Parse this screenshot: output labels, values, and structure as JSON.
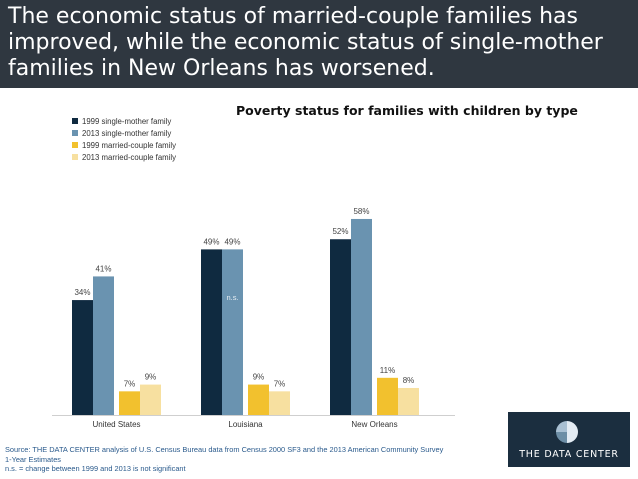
{
  "header": {
    "lines": [
      "The economic status of married-couple families has",
      "improved, while the economic status of single-mother",
      "families in New Orleans has worsened."
    ]
  },
  "chart_data": {
    "type": "bar",
    "title": "Poverty status for families with children by type",
    "categories": [
      "United States",
      "Louisiana",
      "New Orleans"
    ],
    "series": [
      {
        "name": "1999 single-mother family",
        "color": "#0f2a40",
        "values": [
          34,
          49,
          52
        ],
        "labels": [
          "34%",
          "49%",
          "52%"
        ]
      },
      {
        "name": "2013 single-mother family",
        "color": "#6a93b0",
        "values": [
          41,
          49,
          58
        ],
        "labels": [
          "41%",
          "49%",
          "58%"
        ]
      },
      {
        "name": "1999 married-couple family",
        "color": "#f2c12e",
        "values": [
          7,
          9,
          11
        ],
        "labels": [
          "7%",
          "9%",
          "11%"
        ]
      },
      {
        "name": "2013 married-couple family",
        "color": "#f7e0a0",
        "values": [
          9,
          7,
          8
        ],
        "labels": [
          "9%",
          "7%",
          "8%"
        ]
      }
    ],
    "annotations": [
      {
        "category": "Louisiana",
        "series": "2013 single-mother family",
        "text": "n.s."
      }
    ],
    "ylim": [
      0,
      62
    ],
    "xlabel": "",
    "ylabel": "",
    "legend": "top-left",
    "grid": false
  },
  "source": {
    "lines": [
      "Source: THE DATA CENTER analysis of U.S. Census Bureau data from Census 2000 SF3 and the 2013 American Community Survey",
      "1-Year Estimates",
      "n.s. = change between 1999 and 2013 is not significant"
    ]
  },
  "logo": {
    "text": "THE DATA CENTER"
  }
}
